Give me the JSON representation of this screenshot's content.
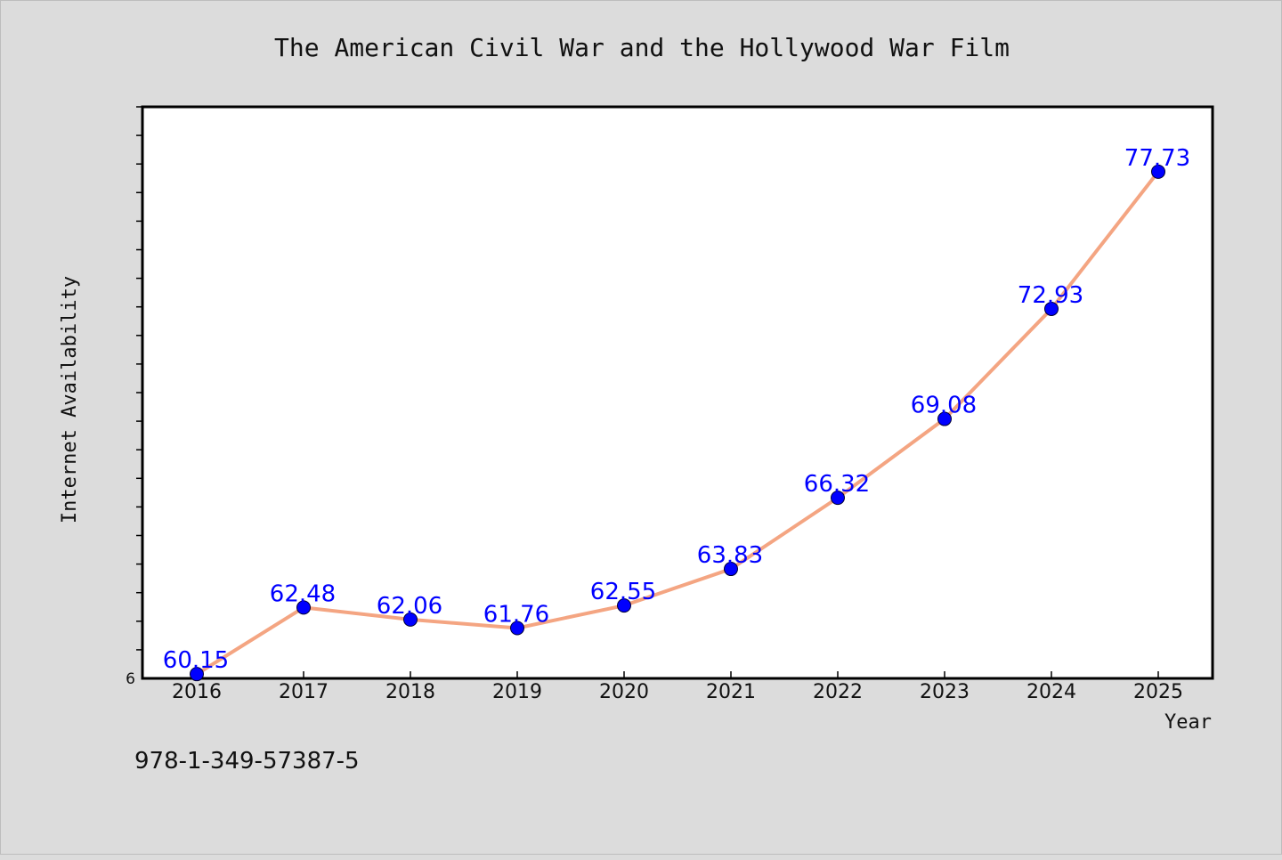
{
  "chart_data": {
    "type": "line",
    "title": "The American Civil War and the Hollywood War Film",
    "xlabel": "Year",
    "ylabel": "Internet Availability",
    "x": [
      "2016",
      "2017",
      "2018",
      "2019",
      "2020",
      "2021",
      "2022",
      "2023",
      "2024",
      "2025"
    ],
    "series": [
      {
        "values": [
          60.15,
          62.48,
          62.06,
          61.76,
          62.55,
          63.83,
          66.32,
          69.08,
          72.93,
          77.73
        ],
        "line_color": "#f4a582",
        "marker_color": "#0000ff"
      }
    ],
    "data_labels": [
      "60.15",
      "62.48",
      "62.06",
      "61.76",
      "62.55",
      "63.83",
      "66.32",
      "69.08",
      "72.93",
      "77.73"
    ],
    "ylim": [
      60,
      80
    ],
    "ytick_labels": [
      "6"
    ],
    "grid": false,
    "legend": "none"
  },
  "footer_text": "978-1-349-57387-5"
}
